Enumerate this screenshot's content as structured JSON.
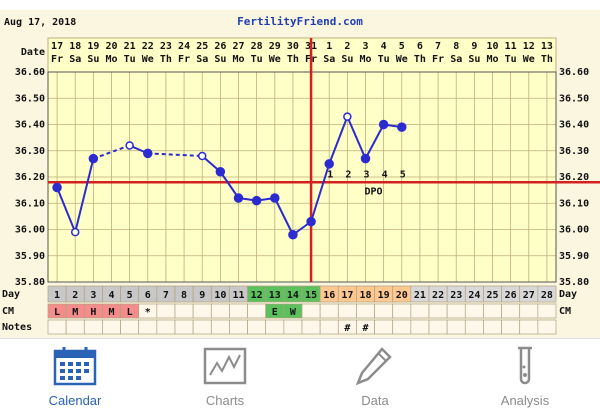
{
  "header": {
    "date": "Aug 17, 2018",
    "site": "FertilityFriend.com"
  },
  "chart_data": {
    "type": "line",
    "row_labels": {
      "date": "Date",
      "day": "Day",
      "cm": "CM",
      "notes": "Notes"
    },
    "categories": [
      "17",
      "18",
      "19",
      "20",
      "21",
      "22",
      "23",
      "24",
      "25",
      "26",
      "27",
      "28",
      "29",
      "30",
      "31",
      "1",
      "2",
      "3",
      "4",
      "5",
      "6",
      "7",
      "8",
      "9",
      "10",
      "11",
      "12",
      "13"
    ],
    "weekdays": [
      "Fr",
      "Sa",
      "Su",
      "Mo",
      "Tu",
      "We",
      "Th",
      "Fr",
      "Sa",
      "Su",
      "Mo",
      "Tu",
      "We",
      "Th",
      "Fr",
      "Sa",
      "Su",
      "Mo",
      "Tu",
      "We",
      "Th",
      "Fr",
      "Sa",
      "Su",
      "Mo",
      "Tu",
      "We",
      "Th"
    ],
    "days": [
      1,
      2,
      3,
      4,
      5,
      6,
      7,
      8,
      9,
      10,
      11,
      12,
      13,
      14,
      15,
      16,
      17,
      18,
      19,
      20,
      21,
      22,
      23,
      24,
      25,
      26,
      27,
      28
    ],
    "day_colors": [
      "#c8c8c8",
      "#c8c8c8",
      "#c8c8c8",
      "#c8c8c8",
      "#c8c8c8",
      "#c8c8c8",
      "#c8c8c8",
      "#c8c8c8",
      "#c8c8c8",
      "#c8c8c8",
      "#c8c8c8",
      "#5cc05c",
      "#5cc05c",
      "#5cc05c",
      "#5cc05c",
      "#ffc890",
      "#ffc890",
      "#ffc890",
      "#ffc890",
      "#ffc890",
      "#d8d8d8",
      "#d8d8d8",
      "#d8d8d8",
      "#d8d8d8",
      "#d8d8d8",
      "#d8d8d8",
      "#d8d8d8",
      "#d8d8d8"
    ],
    "values": [
      36.16,
      35.99,
      36.27,
      null,
      36.32,
      36.29,
      null,
      null,
      36.28,
      36.22,
      36.12,
      36.11,
      36.12,
      35.98,
      36.03,
      36.25,
      36.43,
      36.27,
      36.4,
      36.39,
      null,
      null,
      null,
      null,
      null,
      null,
      null,
      null
    ],
    "color": "#2b2bd0",
    "hollow_points": [
      1,
      4,
      8,
      16
    ],
    "ylim": [
      35.8,
      36.6
    ],
    "yticks": [
      {
        "value": 35.8,
        "label": "35.80"
      },
      {
        "value": 35.9,
        "label": "35.90"
      },
      {
        "value": 36.0,
        "label": "36.00"
      },
      {
        "value": 36.1,
        "label": "36.10"
      },
      {
        "value": 36.2,
        "label": "36.20"
      },
      {
        "value": 36.3,
        "label": "36.30"
      },
      {
        "value": 36.4,
        "label": "36.40"
      },
      {
        "value": 36.5,
        "label": "36.50"
      },
      {
        "value": 36.6,
        "label": "36.60"
      }
    ],
    "grid": true,
    "coverline": 36.18,
    "marker_color": "#d42020",
    "ovulation_day": 15,
    "dpo": {
      "label": "DPO",
      "values": [
        1,
        2,
        3,
        4,
        5
      ]
    },
    "cm": [
      "L",
      "M",
      "H",
      "M",
      "L",
      "*",
      null,
      null,
      null,
      null,
      null,
      null,
      "E",
      "W",
      null,
      null,
      null,
      null,
      null,
      null,
      null,
      null,
      null,
      null,
      null,
      null,
      null,
      null
    ],
    "cm_colors": [
      "#f48c8c",
      "#f48c8c",
      "#f48c8c",
      "#f48c8c",
      "#f48c8c",
      null,
      null,
      null,
      null,
      null,
      null,
      null,
      "#5cc05c",
      "#5cc05c",
      null,
      null,
      null,
      null,
      null,
      null,
      null,
      null,
      null,
      null,
      null,
      null,
      null,
      null
    ],
    "notes": [
      null,
      null,
      null,
      null,
      null,
      null,
      null,
      null,
      null,
      null,
      null,
      null,
      null,
      null,
      null,
      null,
      "#",
      "#",
      null,
      null,
      null,
      null,
      null,
      null,
      null,
      null,
      null,
      null
    ]
  },
  "tabs": {
    "items": [
      "Calendar",
      "Charts",
      "Data",
      "Analysis"
    ],
    "active": 0
  }
}
